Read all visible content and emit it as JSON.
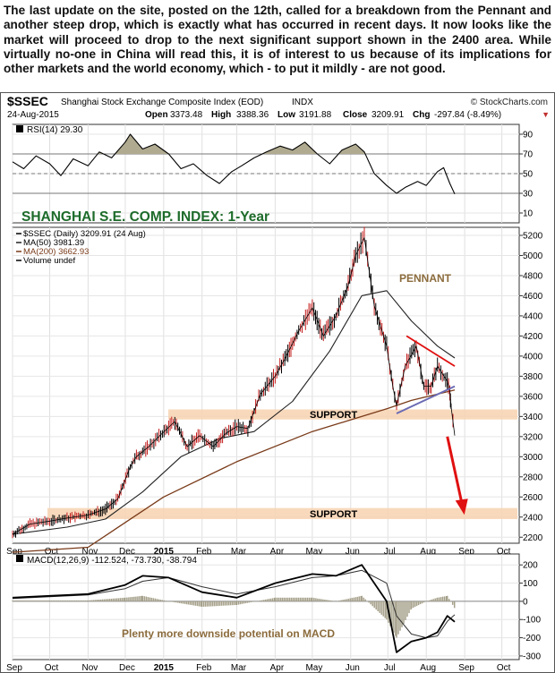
{
  "caption": "The last update on the site, posted on the 12th, called for a breakdown from the Pennant and another steep drop, which is exactly what has occurred in recent days. It now looks like the market will proceed to drop to the next significant support shown in the 2400 area. While virtually no-one in China will read this, it is of interest to us because of its implications for other markets and the world economy, which - to put it mildly - are not good.",
  "header": {
    "symbol": "$SSEC",
    "name": "Shanghai Stock Exchange Composite Index (EOD)",
    "exchange": "INDX",
    "date": "24-Aug-2015",
    "watermark": "© StockCharts.com",
    "open_label": "Open",
    "open": "3373.48",
    "high_label": "High",
    "high": "3388.36",
    "low_label": "Low",
    "low": "3191.88",
    "close_label": "Close",
    "close": "3209.91",
    "chg_label": "Chg",
    "chg": "-297.84 (-8.49%)",
    "chg_arrow": "▼"
  },
  "colors": {
    "price": "#000000",
    "ma50": "#222222",
    "ma200": "#7a3b1a",
    "support_band": "#f7d2b0",
    "annotation": "#8b6b3c",
    "title": "#1d6b2a",
    "arrow": "#e01010",
    "pennant_upper": "#e01010",
    "pennant_lower": "#6a6ab4",
    "rsi_fill": "#b0aa90",
    "macd_hist": "#a5a08a",
    "label_green": "#2a7a2a"
  },
  "chart_data": [
    {
      "type": "line",
      "panel": "rsi",
      "legend": "RSI(14) 29.30",
      "y_ticks": [
        "10",
        "30",
        "50",
        "70",
        "90"
      ],
      "ylim": [
        0,
        100
      ],
      "reference_lines": [
        30,
        50,
        70
      ],
      "series": [
        {
          "name": "RSI(14)",
          "x": [
            "2014-09-01",
            "2014-09-10",
            "2014-09-20",
            "2014-10-01",
            "2014-10-10",
            "2014-10-20",
            "2014-11-01",
            "2014-11-10",
            "2014-11-20",
            "2014-12-01",
            "2014-12-05",
            "2014-12-15",
            "2014-12-25",
            "2015-01-05",
            "2015-01-15",
            "2015-01-25",
            "2015-02-05",
            "2015-02-15",
            "2015-02-25",
            "2015-03-05",
            "2015-03-15",
            "2015-03-25",
            "2015-04-05",
            "2015-04-15",
            "2015-04-25",
            "2015-05-05",
            "2015-05-15",
            "2015-05-25",
            "2015-06-05",
            "2015-06-12",
            "2015-06-20",
            "2015-06-30",
            "2015-07-08",
            "2015-07-15",
            "2015-07-25",
            "2015-08-01",
            "2015-08-10",
            "2015-08-15",
            "2015-08-20",
            "2015-08-24"
          ],
          "values": [
            62,
            55,
            68,
            60,
            48,
            65,
            58,
            72,
            66,
            82,
            90,
            75,
            80,
            70,
            55,
            60,
            48,
            40,
            52,
            58,
            66,
            72,
            78,
            74,
            82,
            70,
            60,
            74,
            80,
            72,
            50,
            38,
            30,
            36,
            42,
            38,
            52,
            56,
            40,
            29.3
          ]
        }
      ]
    },
    {
      "type": "line",
      "panel": "price",
      "title": "SHANGHAI S.E. COMP. INDEX: 1-Year",
      "legend": [
        {
          "name": "$SSEC (Daily) 3209.91 (24 Aug)"
        },
        {
          "name": "MA(50) 3981.39"
        },
        {
          "name": "MA(200) 3662.93"
        },
        {
          "name": "Volume undef"
        }
      ],
      "y_ticks": [
        "2200",
        "2400",
        "2600",
        "2800",
        "3000",
        "3200",
        "3400",
        "3600",
        "3800",
        "4000",
        "4200",
        "4400",
        "4600",
        "4800",
        "5000",
        "5200"
      ],
      "ylim": [
        2140,
        5280
      ],
      "x_labels": [
        "Sep",
        "Oct",
        "Nov",
        "Dec",
        "2015",
        "Feb",
        "Mar",
        "Apr",
        "May",
        "Jun",
        "Jul",
        "Aug",
        "Sep",
        "Oct"
      ],
      "annotations": [
        "PENNANT",
        "SUPPORT",
        "SUPPORT"
      ],
      "support_zones": [
        [
          3370,
          3470
        ],
        [
          2380,
          2490
        ]
      ],
      "series": [
        {
          "name": "$SSEC",
          "x": [
            "2014-09-01",
            "2014-09-15",
            "2014-10-01",
            "2014-10-15",
            "2014-11-01",
            "2014-11-15",
            "2014-11-25",
            "2014-12-05",
            "2014-12-10",
            "2014-12-20",
            "2014-12-31",
            "2015-01-10",
            "2015-01-20",
            "2015-01-30",
            "2015-02-10",
            "2015-02-20",
            "2015-03-01",
            "2015-03-10",
            "2015-03-20",
            "2015-04-01",
            "2015-04-10",
            "2015-04-20",
            "2015-05-01",
            "2015-05-10",
            "2015-05-20",
            "2015-05-30",
            "2015-06-05",
            "2015-06-12",
            "2015-06-20",
            "2015-06-30",
            "2015-07-05",
            "2015-07-08",
            "2015-07-15",
            "2015-07-24",
            "2015-07-30",
            "2015-08-05",
            "2015-08-10",
            "2015-08-18",
            "2015-08-20",
            "2015-08-21",
            "2015-08-24"
          ],
          "values": [
            2230,
            2330,
            2360,
            2390,
            2420,
            2480,
            2580,
            2900,
            3000,
            3100,
            3234,
            3350,
            3100,
            3210,
            3100,
            3230,
            3300,
            3280,
            3620,
            3800,
            4000,
            4250,
            4480,
            4200,
            4400,
            4700,
            5000,
            5178,
            4500,
            4100,
            3700,
            3507,
            3900,
            4100,
            3700,
            3700,
            3900,
            3750,
            3650,
            3500,
            3209.91
          ]
        },
        {
          "name": "MA(50)",
          "x": [
            "2014-09-01",
            "2014-10-15",
            "2014-11-15",
            "2014-12-15",
            "2015-01-15",
            "2015-02-15",
            "2015-03-15",
            "2015-04-15",
            "2015-05-15",
            "2015-06-10",
            "2015-06-30",
            "2015-07-20",
            "2015-08-10",
            "2015-08-24"
          ],
          "values": [
            2230,
            2300,
            2380,
            2650,
            3000,
            3180,
            3250,
            3550,
            4050,
            4600,
            4650,
            4350,
            4100,
            3981.39
          ]
        },
        {
          "name": "MA(200)",
          "x": [
            "2014-09-01",
            "2014-11-01",
            "2015-01-01",
            "2015-03-01",
            "2015-05-01",
            "2015-07-01",
            "2015-07-20",
            "2015-08-24"
          ],
          "values": [
            2050,
            2100,
            2600,
            2950,
            3250,
            3480,
            3560,
            3662.93
          ]
        }
      ],
      "trendlines": [
        {
          "name": "pennant-upper",
          "x": [
            "2015-07-16",
            "2015-08-24"
          ],
          "values": [
            4200,
            3900
          ]
        },
        {
          "name": "pennant-lower",
          "x": [
            "2015-07-08",
            "2015-08-24"
          ],
          "values": [
            3430,
            3700
          ]
        },
        {
          "name": "projection-arrow",
          "x": [
            "2015-08-18",
            "2015-08-31"
          ],
          "values": [
            3200,
            2440
          ]
        }
      ]
    },
    {
      "type": "line",
      "panel": "macd",
      "legend": "MACD(12,26,9) -112.524, -73.730, -38.794",
      "note": "Plenty more downside potential on MACD",
      "y_ticks": [
        "-300",
        "-200",
        "-100",
        "0",
        "100",
        "200"
      ],
      "ylim": [
        -320,
        260
      ],
      "x_labels": [
        "Sep",
        "Oct",
        "Nov",
        "Dec",
        "2015",
        "Feb",
        "Mar",
        "Apr",
        "May",
        "Jun",
        "Jul",
        "Aug",
        "Sep",
        "Oct"
      ],
      "series": [
        {
          "name": "MACD",
          "x": [
            "2014-09-01",
            "2014-10-01",
            "2014-11-01",
            "2014-12-01",
            "2014-12-15",
            "2015-01-05",
            "2015-02-01",
            "2015-03-01",
            "2015-04-01",
            "2015-05-01",
            "2015-05-20",
            "2015-06-10",
            "2015-06-30",
            "2015-07-08",
            "2015-07-20",
            "2015-08-01",
            "2015-08-10",
            "2015-08-18",
            "2015-08-24"
          ],
          "values": [
            20,
            30,
            40,
            90,
            140,
            130,
            50,
            20,
            100,
            150,
            140,
            200,
            0,
            -280,
            -220,
            -200,
            -170,
            -80,
            -112.524
          ]
        },
        {
          "name": "Signal",
          "x": [
            "2014-09-01",
            "2014-10-01",
            "2014-11-01",
            "2014-12-01",
            "2014-12-15",
            "2015-01-05",
            "2015-02-01",
            "2015-03-01",
            "2015-04-01",
            "2015-05-01",
            "2015-05-20",
            "2015-06-10",
            "2015-06-30",
            "2015-07-08",
            "2015-07-20",
            "2015-08-01",
            "2015-08-10",
            "2015-08-18",
            "2015-08-24"
          ],
          "values": [
            15,
            25,
            35,
            70,
            110,
            130,
            80,
            40,
            80,
            130,
            140,
            170,
            100,
            -80,
            -180,
            -200,
            -190,
            -110,
            -73.73
          ]
        },
        {
          "name": "Histogram",
          "x": [
            "2014-09-01",
            "2014-10-01",
            "2014-11-01",
            "2014-12-01",
            "2014-12-15",
            "2015-01-05",
            "2015-02-01",
            "2015-03-01",
            "2015-04-01",
            "2015-05-01",
            "2015-05-20",
            "2015-06-10",
            "2015-06-30",
            "2015-07-08",
            "2015-07-20",
            "2015-08-01",
            "2015-08-10",
            "2015-08-18",
            "2015-08-24"
          ],
          "values": [
            5,
            5,
            5,
            20,
            30,
            0,
            -30,
            -20,
            20,
            20,
            0,
            30,
            -100,
            -200,
            -40,
            0,
            20,
            30,
            -38.794
          ]
        }
      ]
    }
  ]
}
